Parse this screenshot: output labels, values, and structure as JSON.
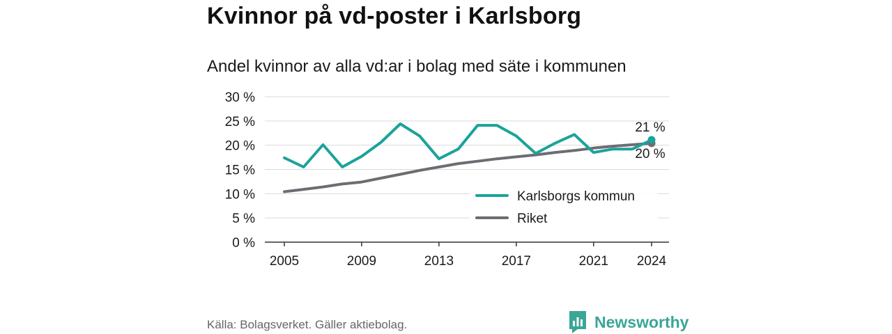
{
  "header": {
    "title": "Kvinnor på vd-poster i Karlsborg",
    "subtitle": "Andel kvinnor av alla vd:ar i bolag med säte i kommunen"
  },
  "footer": {
    "source": "Källa: Bolagsverket. Gäller aktiebolag.",
    "brand": "Newsworthy"
  },
  "colors": {
    "karlsborg": "#1ba39a",
    "riket": "#6e6c72",
    "grid": "#d9d9d9",
    "brand": "#3aa696"
  },
  "chart_data": {
    "type": "line",
    "title": "Andel kvinnor av alla vd:ar i bolag med säte i kommunen",
    "x": [
      2005,
      2006,
      2007,
      2008,
      2009,
      2010,
      2011,
      2012,
      2013,
      2014,
      2015,
      2016,
      2017,
      2018,
      2019,
      2020,
      2021,
      2022,
      2023,
      2024
    ],
    "x_ticks": [
      "2005",
      "2009",
      "2013",
      "2017",
      "2021",
      "2024"
    ],
    "y_ticks": [
      "0 %",
      "5 %",
      "10 %",
      "15 %",
      "20 %",
      "25 %",
      "30 %"
    ],
    "ylim": [
      0,
      30
    ],
    "grid": true,
    "legend_position": "bottom-right",
    "series": [
      {
        "name": "Karlsborgs kommun",
        "values": [
          17.4,
          15.5,
          20.1,
          15.5,
          17.7,
          20.6,
          24.4,
          21.9,
          17.2,
          19.2,
          24.1,
          24.1,
          21.9,
          18.3,
          20.4,
          22.2,
          18.5,
          19.2,
          19.2,
          21.1
        ],
        "end_label": "21 %"
      },
      {
        "name": "Riket",
        "values": [
          10.4,
          10.9,
          11.4,
          12.0,
          12.4,
          13.2,
          14.0,
          14.8,
          15.5,
          16.2,
          16.7,
          17.2,
          17.6,
          18.0,
          18.5,
          18.9,
          19.4,
          19.8,
          20.1,
          20.4
        ],
        "end_label": "20 %"
      }
    ]
  }
}
